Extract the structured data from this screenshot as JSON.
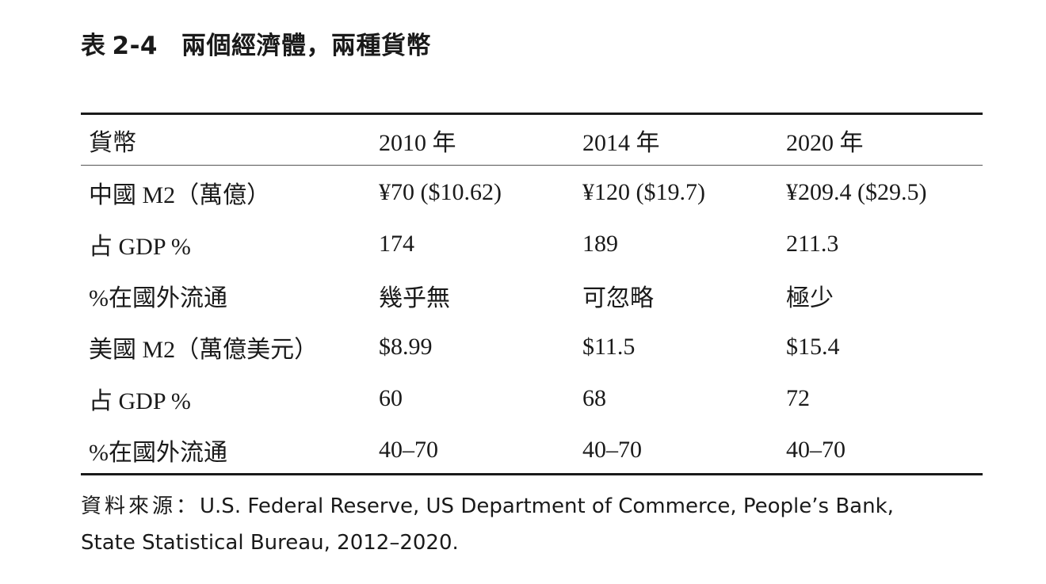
{
  "title": {
    "label": "表",
    "number": "2-4",
    "text": "兩個經濟體，兩種貨幣"
  },
  "table": {
    "header": [
      "貨幣",
      "2010 年",
      "2014 年",
      "2020 年"
    ],
    "rows": [
      [
        "中國 M2（萬億）",
        "¥70 ($10.62)",
        "¥120 ($19.7)",
        "¥209.4 ($29.5)"
      ],
      [
        "占 GDP %",
        "174",
        "189",
        "211.3"
      ],
      [
        "%在國外流通",
        "幾乎無",
        "可忽略",
        "極少"
      ],
      [
        "美國 M2（萬億美元）",
        "$8.99",
        "$11.5",
        "$15.4"
      ],
      [
        "占 GDP %",
        "60",
        "68",
        "72"
      ],
      [
        "%在國外流通",
        "40–70",
        "40–70",
        "40–70"
      ]
    ]
  },
  "source": {
    "label": "資料來源：",
    "line1": "U.S. Federal Reserve, US Department of Commerce, People’s Bank,",
    "line2": "State Statistical Bureau, 2012–2020."
  }
}
